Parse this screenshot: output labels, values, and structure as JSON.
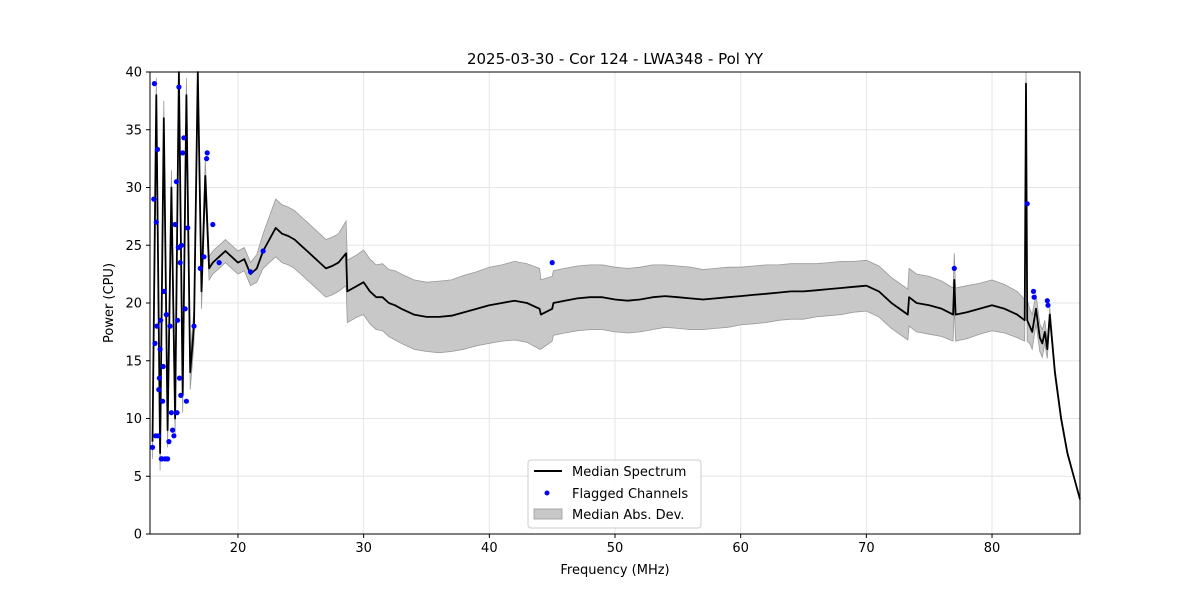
{
  "chart_data": {
    "type": "line",
    "title": "2025-03-30 - Cor 124 - LWA348 - Pol YY",
    "xlabel": "Frequency (MHz)",
    "ylabel": "Power (CPU)",
    "xlim": [
      13,
      87
    ],
    "ylim": [
      0,
      40
    ],
    "xticks": [
      20,
      30,
      40,
      50,
      60,
      70,
      80
    ],
    "xtick_labels": [
      "20",
      "30",
      "40",
      "50",
      "60",
      "70",
      "80"
    ],
    "yticks": [
      0,
      5,
      10,
      15,
      20,
      25,
      30,
      35,
      40
    ],
    "ytick_labels": [
      "0",
      "5",
      "10",
      "15",
      "20",
      "25",
      "30",
      "35",
      "40"
    ],
    "grid": true,
    "legend_position": "lower center",
    "legend": [
      "Median Spectrum",
      "Flagged Channels",
      "Median Abs. Dev."
    ],
    "colors": {
      "median": "#000000",
      "flagged": "#0000ff",
      "mad_fill": "#c8c8c8",
      "mad_edge": "#999999",
      "grid": "#e6e6e6"
    },
    "series": [
      {
        "name": "Median Spectrum",
        "x": [
          13.2,
          13.5,
          13.8,
          14.1,
          14.4,
          14.7,
          15.0,
          15.3,
          15.6,
          15.9,
          16.2,
          16.5,
          16.8,
          17.1,
          17.4,
          17.7,
          18.0,
          18.5,
          19.0,
          19.5,
          20.0,
          20.5,
          21.0,
          21.5,
          22.0,
          22.5,
          23.0,
          23.5,
          24.0,
          24.5,
          25.0,
          25.5,
          26.0,
          26.5,
          27.0,
          27.5,
          28.0,
          28.6,
          28.7,
          29.5,
          30.0,
          30.5,
          31.0,
          31.5,
          32.0,
          32.5,
          33.0,
          34.0,
          35.0,
          36.0,
          37.0,
          38.0,
          39.0,
          40.0,
          41.0,
          42.0,
          43.0,
          44.0,
          44.1,
          45.0,
          45.1,
          46.0,
          47.0,
          48.0,
          49.0,
          50.0,
          51.0,
          52.0,
          53.0,
          54.0,
          55.0,
          56.0,
          57.0,
          58.0,
          59.0,
          60.0,
          61.0,
          62.0,
          63.0,
          64.0,
          65.0,
          66.0,
          67.0,
          68.0,
          69.0,
          70.0,
          71.0,
          72.0,
          73.3,
          73.4,
          74.0,
          75.0,
          76.0,
          76.9,
          77.0,
          77.1,
          78.0,
          79.0,
          80.0,
          81.0,
          82.0,
          82.6,
          82.7,
          82.8,
          83.0,
          83.2,
          83.5,
          83.8,
          84.0,
          84.2,
          84.4,
          84.6,
          85.0,
          85.5,
          86.0,
          86.5,
          87.0
        ],
        "y": [
          8.0,
          38.0,
          7.0,
          36.0,
          9.0,
          30.0,
          10.0,
          40.0,
          12.0,
          38.0,
          14.0,
          18.0,
          40.0,
          21.0,
          31.0,
          23.0,
          23.5,
          24.0,
          24.5,
          24.0,
          23.5,
          23.8,
          22.5,
          23.0,
          24.5,
          25.5,
          26.5,
          26.0,
          25.8,
          25.5,
          25.0,
          24.5,
          24.0,
          23.5,
          23.0,
          23.2,
          23.5,
          24.3,
          21.0,
          21.5,
          21.8,
          21.0,
          20.5,
          20.5,
          20.0,
          19.8,
          19.5,
          19.0,
          18.8,
          18.8,
          18.9,
          19.2,
          19.5,
          19.8,
          20.0,
          20.2,
          20.0,
          19.5,
          19.0,
          19.5,
          20.0,
          20.2,
          20.4,
          20.5,
          20.5,
          20.3,
          20.2,
          20.3,
          20.5,
          20.6,
          20.5,
          20.4,
          20.3,
          20.4,
          20.5,
          20.6,
          20.7,
          20.8,
          20.9,
          21.0,
          21.0,
          21.1,
          21.2,
          21.3,
          21.4,
          21.5,
          21.0,
          20.0,
          19.0,
          20.5,
          20.0,
          19.8,
          19.5,
          19.0,
          22.0,
          19.0,
          19.2,
          19.5,
          19.8,
          19.5,
          19.0,
          18.5,
          39.0,
          18.5,
          18.0,
          17.5,
          19.5,
          17.0,
          16.5,
          17.5,
          16.0,
          19.0,
          14.0,
          10.0,
          7.0,
          5.0,
          3.0
        ],
        "mad": [
          1.5,
          1.5,
          1.5,
          1.5,
          1.5,
          1.5,
          1.5,
          1.5,
          1.5,
          1.5,
          1.5,
          1.5,
          1.5,
          1.5,
          1.5,
          1.0,
          1.0,
          1.0,
          1.0,
          1.0,
          1.0,
          1.0,
          1.0,
          1.2,
          1.5,
          2.0,
          2.5,
          2.5,
          2.5,
          2.5,
          2.5,
          2.5,
          2.5,
          2.5,
          2.5,
          2.5,
          2.5,
          2.8,
          2.7,
          2.7,
          2.8,
          2.8,
          2.8,
          2.9,
          2.9,
          3.0,
          3.0,
          3.0,
          3.0,
          3.1,
          3.1,
          3.2,
          3.2,
          3.3,
          3.3,
          3.4,
          3.4,
          3.5,
          3.0,
          2.8,
          2.8,
          2.8,
          2.8,
          2.8,
          2.8,
          2.8,
          2.8,
          2.8,
          2.8,
          2.7,
          2.7,
          2.7,
          2.6,
          2.6,
          2.6,
          2.5,
          2.5,
          2.5,
          2.4,
          2.4,
          2.4,
          2.3,
          2.3,
          2.3,
          2.2,
          2.2,
          2.2,
          2.2,
          2.2,
          2.5,
          2.5,
          2.5,
          2.4,
          2.3,
          2.3,
          2.3,
          2.3,
          2.2,
          2.2,
          2.1,
          2.0,
          1.8,
          1.8,
          1.8,
          1.5,
          1.5,
          1.3,
          1.2,
          1.2,
          1.0,
          0.8,
          0.6,
          0.4,
          0.3,
          0.2,
          0.1,
          0.1
        ]
      },
      {
        "name": "Flagged Channels",
        "x": [
          13.2,
          13.3,
          13.35,
          13.4,
          13.45,
          13.5,
          13.55,
          13.6,
          13.65,
          13.7,
          13.75,
          13.8,
          13.85,
          13.9,
          13.95,
          14.0,
          14.05,
          14.1,
          14.2,
          14.3,
          14.4,
          14.5,
          14.6,
          14.7,
          14.8,
          14.9,
          15.0,
          15.1,
          15.15,
          15.2,
          15.25,
          15.3,
          15.35,
          15.4,
          15.45,
          15.5,
          15.6,
          15.7,
          15.8,
          15.9,
          16.0,
          16.5,
          17.0,
          17.3,
          17.5,
          17.55,
          18.0,
          18.5,
          21.0,
          22.0,
          45.0,
          77.0,
          82.8,
          83.3,
          83.35,
          84.4,
          84.45
        ],
        "y": [
          7.5,
          29.0,
          39.0,
          16.5,
          8.5,
          27.0,
          18.0,
          33.3,
          8.5,
          12.5,
          13.5,
          16.0,
          18.5,
          6.5,
          6.5,
          11.5,
          14.5,
          21.0,
          6.5,
          19.0,
          6.5,
          8.0,
          18.0,
          10.5,
          9.0,
          8.5,
          26.8,
          30.5,
          10.5,
          18.5,
          24.8,
          38.7,
          13.5,
          23.5,
          12.0,
          25.0,
          33.0,
          34.3,
          19.5,
          11.5,
          26.5,
          18.0,
          23.0,
          24.0,
          32.5,
          33.0,
          26.8,
          23.5,
          22.7,
          24.5,
          23.5,
          23.0,
          28.6,
          21.0,
          20.5,
          20.2,
          19.8
        ]
      }
    ]
  }
}
